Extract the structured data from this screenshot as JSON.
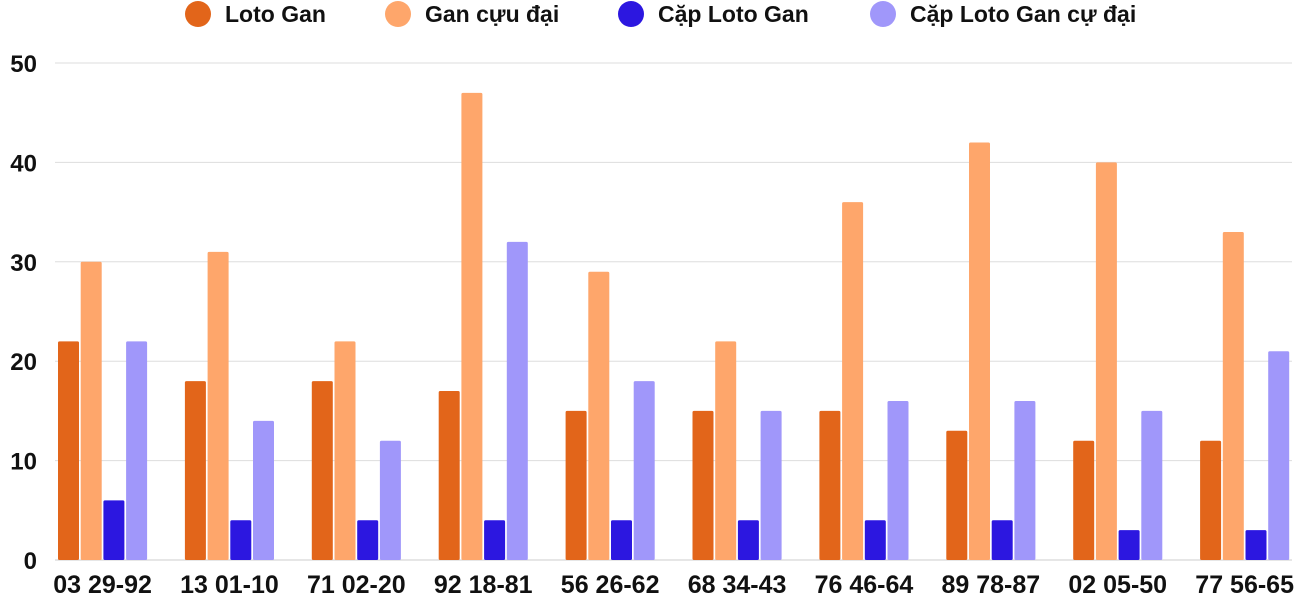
{
  "chart_data": {
    "type": "bar",
    "title": "",
    "xlabel": "",
    "ylabel": "",
    "ylim": [
      0,
      50
    ],
    "yticks": [
      "0",
      "10",
      "20",
      "30",
      "40",
      "50"
    ],
    "grid": true,
    "legend_position": "top",
    "categories": [
      "03 29-92",
      "13 01-10",
      "71 02-20",
      "92 18-81",
      "56 26-62",
      "68 34-43",
      "76 46-64",
      "89 78-87",
      "02 05-50",
      "77 56-65"
    ],
    "series": [
      {
        "name": "Loto Gan",
        "color": "#e2651a",
        "values": [
          22,
          18,
          18,
          17,
          15,
          15,
          15,
          13,
          12,
          12
        ]
      },
      {
        "name": "Gan cựu đại",
        "color": "#fea66b",
        "values": [
          30,
          31,
          22,
          47,
          29,
          22,
          36,
          42,
          40,
          33
        ]
      },
      {
        "name": "Cặp Loto Gan",
        "color": "#2c17e0",
        "values": [
          6,
          4,
          4,
          4,
          4,
          4,
          4,
          4,
          3,
          3
        ]
      },
      {
        "name": "Cặp Loto Gan cự đại",
        "color": "#a097fa",
        "values": [
          22,
          14,
          12,
          32,
          18,
          15,
          16,
          16,
          15,
          21
        ]
      }
    ]
  }
}
